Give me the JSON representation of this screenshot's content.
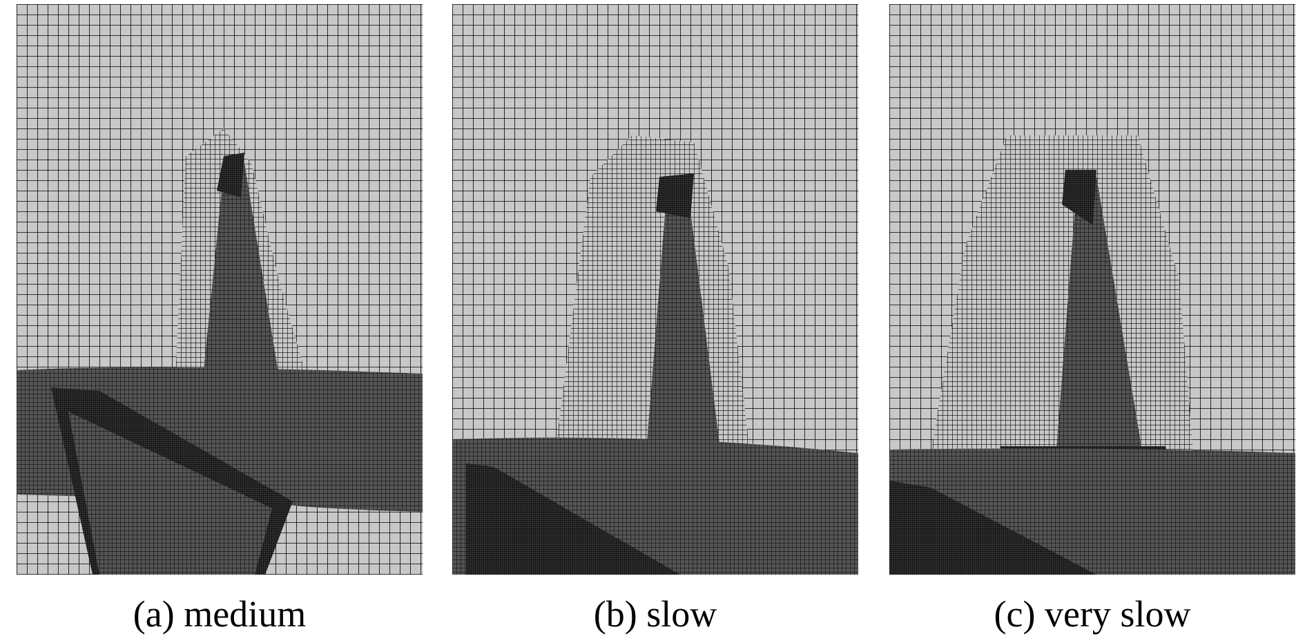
{
  "figure": {
    "panels": [
      {
        "caption": "(a) medium",
        "mesh_colors": {
          "background": "#c8c8c8",
          "body": "#555555",
          "lines": "#000000"
        }
      },
      {
        "caption": "(b) slow",
        "mesh_colors": {
          "background": "#c8c8c8",
          "body": "#555555",
          "lines": "#000000"
        }
      },
      {
        "caption": "(c) very slow",
        "mesh_colors": {
          "background": "#c8c8c8",
          "body": "#555555",
          "lines": "#000000"
        }
      }
    ]
  }
}
